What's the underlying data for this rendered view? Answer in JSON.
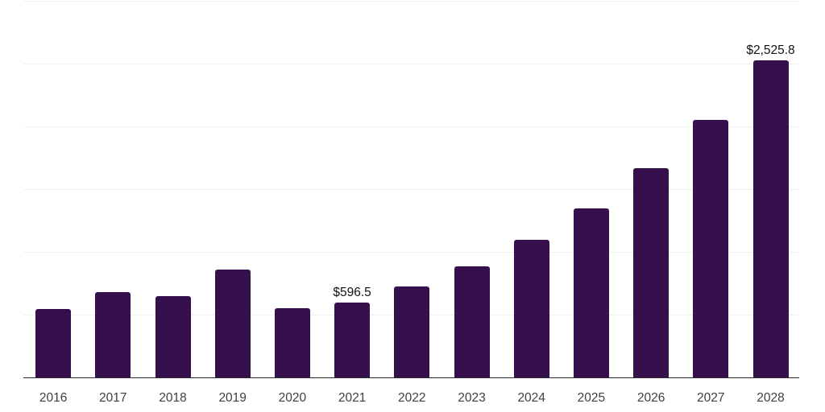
{
  "chart_data": {
    "type": "bar",
    "title": "",
    "xlabel": "",
    "ylabel": "",
    "categories": [
      "2016",
      "2017",
      "2018",
      "2019",
      "2020",
      "2021",
      "2022",
      "2023",
      "2024",
      "2025",
      "2026",
      "2027",
      "2028"
    ],
    "values": [
      545,
      679,
      647,
      859,
      551,
      596.5,
      724,
      885,
      1096,
      1346,
      1667,
      2051,
      2525.8
    ],
    "annotations": [
      {
        "category": "2021",
        "text": "$596.5"
      },
      {
        "category": "2028",
        "text": "$2,525.8"
      }
    ],
    "ylim": [
      0,
      3000
    ],
    "gridline_step": 500,
    "grid": true,
    "legend": false
  },
  "colors": {
    "background": "#FFFFFF",
    "bar": "#36104D",
    "gridline": "#F0F0F0",
    "axis_line": "#2B2B2B",
    "tick_label": "#3F3F3F",
    "value_label": "#121212"
  }
}
